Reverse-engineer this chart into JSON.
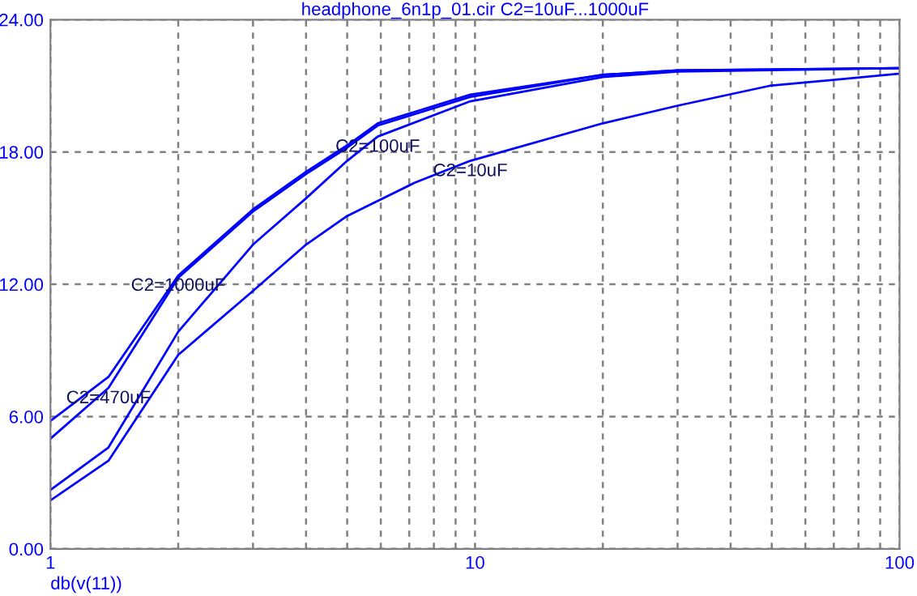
{
  "chart_data": {
    "type": "line",
    "title": "headphone_6n1p_01.cir C2=10uF...1000uF",
    "xlabel": "db(v(11))",
    "log": "x",
    "grid": true,
    "line_style": "solid",
    "marker": "none",
    "xlim": [
      1,
      100
    ],
    "ylim": [
      0,
      24
    ],
    "xticks": [
      1,
      {
        "value": 2,
        "label": null
      },
      {
        "value": 3,
        "label": null
      },
      {
        "value": 4,
        "label": null
      },
      {
        "value": 5,
        "label": null
      },
      {
        "value": 6,
        "label": null
      },
      {
        "value": 7,
        "label": null
      },
      {
        "value": 8,
        "label": null
      },
      {
        "value": 9,
        "label": null
      },
      10,
      {
        "value": 20,
        "label": null
      },
      {
        "value": 30,
        "label": null
      },
      {
        "value": 40,
        "label": null
      },
      {
        "value": 50,
        "label": null
      },
      {
        "value": 60,
        "label": null
      },
      {
        "value": 70,
        "label": null
      },
      {
        "value": 80,
        "label": null
      },
      {
        "value": 90,
        "label": null
      },
      100
    ],
    "yticks": [
      {
        "value": 0,
        "label": "0.00"
      },
      {
        "value": 6,
        "label": "6.00"
      },
      {
        "value": 12,
        "label": "12.00"
      },
      {
        "value": 18,
        "label": "18.00"
      },
      {
        "value": 24,
        "label": "24.00"
      }
    ],
    "series": [
      {
        "color": "#0000ff",
        "x": [
          1,
          1.37,
          2,
          3,
          4,
          5,
          5.9,
          9.75,
          20,
          30,
          100
        ],
        "values": [
          5.8,
          7.8,
          12.4,
          15.4,
          17.1,
          18.3,
          19.3,
          20.6,
          21.5,
          21.7,
          21.8
        ]
      },
      {
        "color": "#0000ff",
        "x": [
          1,
          1.37,
          2,
          3,
          4,
          5,
          5.9,
          9.75,
          20,
          30,
          100
        ],
        "values": [
          5.0,
          7.3,
          12.3,
          15.3,
          17.0,
          18.2,
          19.2,
          20.5,
          21.5,
          21.7,
          21.8
        ]
      },
      {
        "color": "#0000ff",
        "x": [
          1,
          1.37,
          2,
          3,
          4,
          5,
          5.9,
          9.75,
          20,
          30,
          100
        ],
        "values": [
          2.67,
          4.6,
          9.85,
          13.8,
          15.9,
          17.6,
          18.7,
          20.3,
          21.4,
          21.65,
          21.8
        ]
      },
      {
        "color": "#0000ff",
        "x": [
          1,
          1.37,
          2,
          3,
          4,
          5,
          7.2,
          9.75,
          20,
          30,
          49.4,
          100
        ],
        "values": [
          2.2,
          4.0,
          8.8,
          11.7,
          13.8,
          15.1,
          16.6,
          17.6,
          19.3,
          20.1,
          21.0,
          21.55
        ]
      }
    ],
    "annotations": [
      {
        "text": "C2=1000uF",
        "x": 2,
        "y": 12.4
      },
      {
        "text": "C2=100uF",
        "x": 5.9,
        "y": 18.7
      },
      {
        "text": "C2=10uF",
        "x": 9.75,
        "y": 17.6
      },
      {
        "text": "C2=470uF",
        "x": 1.37,
        "y": 7.3
      }
    ]
  }
}
